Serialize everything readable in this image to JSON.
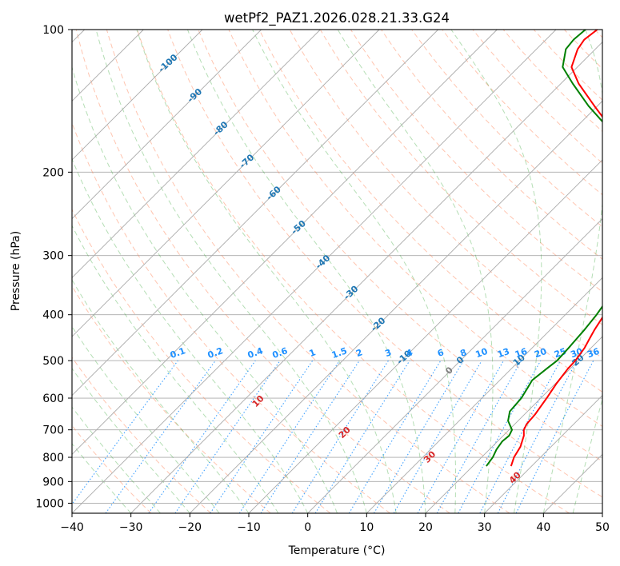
{
  "chart_data": {
    "type": "line",
    "title": "wetPf2_PAZ1.2026.028.21.33.G24",
    "xlabel": "Temperature (°C)",
    "ylabel": "Pressure (hPa)",
    "xlim": [
      -40,
      50
    ],
    "ylim": [
      1050,
      100
    ],
    "x_ticks": [
      -40,
      -30,
      -20,
      -10,
      0,
      10,
      20,
      30,
      40,
      50
    ],
    "x_tick_labels": [
      "−40",
      "−30",
      "−20",
      "−10",
      "0",
      "10",
      "20",
      "30",
      "40",
      "50"
    ],
    "y_ticks": [
      1000,
      900,
      800,
      700,
      600,
      500,
      400,
      300,
      200,
      100
    ],
    "y_tick_labels": [
      "1000",
      "900",
      "800",
      "700",
      "600",
      "500",
      "400",
      "300",
      "200",
      "100"
    ],
    "grid": true,
    "colors": {
      "temperature": "#ff0000",
      "dewpoint": "#008000",
      "isotherm": "#aaaaaa",
      "dry_adiabat": "#ff7f50",
      "moist_adiabat": "#2ca02c",
      "mixing_ratio": "#1e90ff",
      "isotherm_label": "#1f77b4",
      "dry_adiabat_label": "#d62728",
      "moist_adiabat_label": "#7f7f7f",
      "mixing_ratio_label": "#1e90ff"
    },
    "series": [
      {
        "name": "Temperature",
        "color": "#ff0000",
        "pressure": [
          835,
          800,
          760,
          720,
          700,
          680,
          650,
          600,
          560,
          520,
          500,
          470,
          450,
          430,
          400,
          370,
          340,
          310,
          290,
          270,
          250,
          230,
          210,
          195,
          175,
          160,
          145,
          130,
          120,
          110,
          105,
          100
        ],
        "values": [
          26.5,
          25.5,
          24.8,
          23.5,
          22.5,
          22.0,
          21.8,
          21.0,
          20.2,
          19.6,
          19.5,
          18.9,
          18.2,
          17.5,
          16.6,
          15.5,
          14.2,
          12.7,
          11.0,
          8.8,
          6.5,
          3.5,
          0.0,
          -3.5,
          -9.0,
          -14.5,
          -20.5,
          -27.0,
          -31.0,
          -33.0,
          -33.5,
          -33.0
        ]
      },
      {
        "name": "Dewpoint",
        "color": "#008000",
        "pressure": [
          835,
          800,
          770,
          740,
          720,
          700,
          670,
          640,
          600,
          570,
          550,
          520,
          500,
          470,
          450,
          430,
          400,
          370,
          340,
          310,
          295,
          280,
          265,
          250,
          230,
          210,
          195,
          175,
          160,
          145,
          130,
          120,
          110,
          105,
          100
        ],
        "values": [
          22.3,
          21.9,
          21.2,
          20.8,
          21.0,
          20.5,
          18.3,
          17.0,
          16.7,
          16.0,
          15.5,
          16.0,
          16.4,
          16.2,
          16.0,
          15.8,
          15.3,
          14.5,
          13.5,
          12.3,
          10.2,
          6.8,
          3.5,
          0.2,
          -2.7,
          -4.0,
          -5.3,
          -9.5,
          -15.0,
          -21.5,
          -28.0,
          -32.5,
          -35.0,
          -35.3,
          -35.0
        ]
      }
    ],
    "isotherm_labels": [
      "-100",
      "-90",
      "-80",
      "-70",
      "-60",
      "-50",
      "-40",
      "-30",
      "-20",
      "-10",
      "0",
      "10",
      "20",
      "30",
      "40"
    ],
    "isotherm_label_values": [
      -100,
      -90,
      -80,
      -70,
      -60,
      -50,
      -40,
      -30,
      -20,
      -10,
      0,
      10,
      20,
      30,
      40
    ],
    "dry_adiabat_labels": [
      "10",
      "20",
      "30",
      "40"
    ],
    "dry_adiabat_label_values": [
      10,
      20,
      30,
      40
    ],
    "moist_adiabat_labels": [
      "0"
    ],
    "mixing_ratio_labels": [
      "0.1",
      "0.2",
      "0.4",
      "0.6",
      "1",
      "1.5",
      "2",
      "3",
      "4",
      "6",
      "8",
      "10",
      "13",
      "16",
      "20",
      "25",
      "30",
      "36"
    ],
    "mixing_ratio_values": [
      0.1,
      0.2,
      0.4,
      0.6,
      1,
      1.5,
      2,
      3,
      4,
      6,
      8,
      10,
      13,
      16,
      20,
      25,
      30,
      36
    ]
  }
}
